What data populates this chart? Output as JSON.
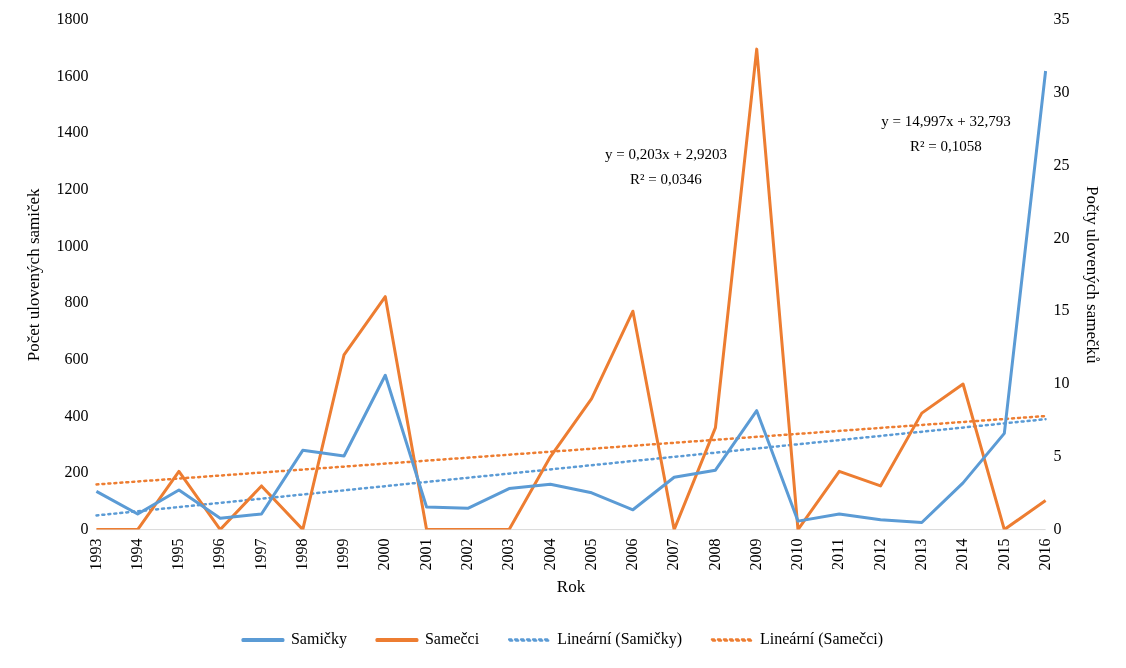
{
  "chart_data": {
    "type": "line",
    "xlabel": "Rok",
    "ylabel": "Počet ulovených samiček",
    "y2label": "Počty ulovených samečků",
    "categories": [
      "1993",
      "1994",
      "1995",
      "1996",
      "1997",
      "1998",
      "1999",
      "2000",
      "2001",
      "2002",
      "2003",
      "2004",
      "2005",
      "2006",
      "2007",
      "2008",
      "2009",
      "2010",
      "2011",
      "2012",
      "2013",
      "2014",
      "2015",
      "2016"
    ],
    "series": [
      {
        "name": "Samičky",
        "color": "#5b9bd5",
        "values": [
          135,
          55,
          140,
          40,
          55,
          280,
          260,
          545,
          80,
          75,
          145,
          160,
          130,
          70,
          185,
          210,
          420,
          30,
          55,
          35,
          25,
          165,
          340,
          1620
        ]
      },
      {
        "name": "Samečci",
        "color": "#ed7d31",
        "axis": "y2",
        "values": [
          0,
          0,
          4,
          0,
          3,
          0,
          12,
          16,
          0,
          0,
          0,
          5,
          9,
          15,
          0,
          7,
          33,
          0,
          4,
          3,
          8,
          10,
          0,
          2
        ]
      },
      {
        "name": "Lineární (Samičky)",
        "type": "line",
        "line_style": "dotted",
        "color": "#5b9bd5",
        "values": [
          50,
          null,
          null,
          null,
          null,
          null,
          null,
          null,
          null,
          null,
          null,
          null,
          null,
          null,
          null,
          null,
          null,
          null,
          null,
          null,
          null,
          null,
          null,
          390
        ]
      },
      {
        "name": "Lineární (Samečci)",
        "type": "line",
        "line_style": "dotted",
        "color": "#ed7d31",
        "axis": "y2",
        "values": [
          3.1,
          null,
          null,
          null,
          null,
          null,
          null,
          null,
          null,
          null,
          null,
          null,
          null,
          null,
          null,
          null,
          null,
          null,
          null,
          null,
          null,
          null,
          null,
          7.8
        ]
      }
    ],
    "ylim": [
      0,
      1800
    ],
    "yticks": [
      0,
      200,
      400,
      600,
      800,
      1000,
      1200,
      1400,
      1600,
      1800
    ],
    "y2lim": [
      0,
      35
    ],
    "y2ticks": [
      0,
      5,
      10,
      15,
      20,
      25,
      30,
      35
    ],
    "annotations": [
      "y = 0,203x + 2,9203",
      "R² = 0,0346",
      "y = 14,997x + 32,793",
      "R² = 0,1058"
    ],
    "grid": false,
    "legend": "bottom",
    "marker": "none",
    "line_style": "solid"
  }
}
